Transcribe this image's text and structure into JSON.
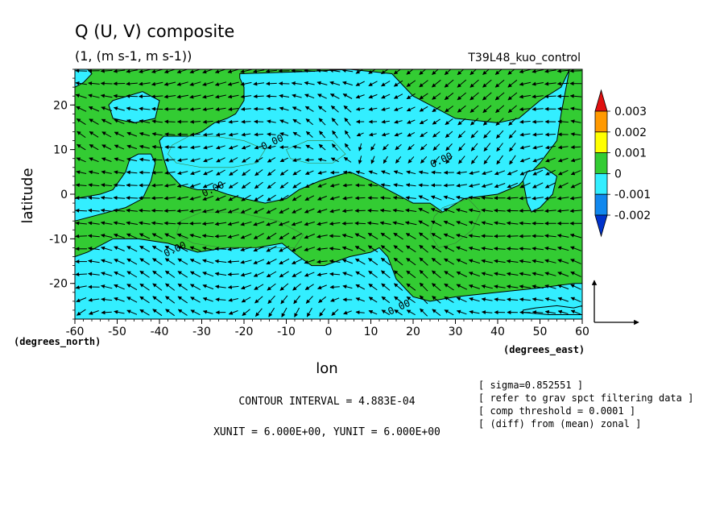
{
  "chart_data": {
    "type": "contour-vector",
    "title": "Q (U, V) composite",
    "subtitle": "(1, (m s-1, m s-1))",
    "run_label": "T39L48_kuo_control",
    "xlabel": "lon",
    "ylabel": "latitude",
    "x_unit_label": "(degrees_east)",
    "y_unit_label": "(degrees_north)",
    "xlim": [
      -60,
      60
    ],
    "ylim": [
      -28,
      28
    ],
    "x_ticks": [
      -60,
      -50,
      -40,
      -30,
      -20,
      -10,
      0,
      10,
      20,
      30,
      40,
      50,
      60
    ],
    "x_tick_labels": [
      "-60",
      "-50",
      "-40",
      "-30",
      "-20",
      "-10",
      "0",
      "10",
      "20",
      "30",
      "40",
      "50",
      "60"
    ],
    "y_ticks": [
      -20,
      -10,
      0,
      10,
      20
    ],
    "y_tick_labels": [
      "-20",
      "-10",
      "0",
      "10",
      "20"
    ],
    "colorbar": {
      "levels": [
        0.003,
        0.002,
        0.001,
        0,
        -0.001,
        -0.002
      ],
      "labels": [
        "0.003",
        "0.002",
        "0.001",
        "0",
        "-0.001",
        "-0.002"
      ],
      "colors": [
        "#e01010",
        "#ff9900",
        "#ffff00",
        "#33cc33",
        "#33eeff",
        "#1188ee",
        "#0033cc"
      ]
    },
    "fill_colors": {
      "positive": "#33cc33",
      "negative": "#33eeff"
    },
    "contour_labels": [
      {
        "text": "0.00",
        "lon": -13,
        "lat": 11
      },
      {
        "text": "0.00",
        "lon": -27,
        "lat": 0.5
      },
      {
        "text": "0.00",
        "lon": -36,
        "lat": -13
      },
      {
        "text": "0.00",
        "lon": 27,
        "lat": 7
      },
      {
        "text": "0.00",
        "lon": 17,
        "lat": -26
      }
    ],
    "negative_regions": [
      [
        [
          -51,
          21
        ],
        [
          -44,
          23
        ],
        [
          -40,
          21
        ],
        [
          -41,
          17
        ],
        [
          -46,
          16
        ],
        [
          -51,
          17
        ],
        [
          -52,
          20
        ]
      ],
      [
        [
          -21,
          27
        ],
        [
          -5,
          27.5
        ],
        [
          5,
          28
        ],
        [
          15,
          27
        ],
        [
          20,
          22
        ],
        [
          25,
          19.5
        ],
        [
          30,
          17
        ],
        [
          40,
          16
        ],
        [
          45,
          17
        ],
        [
          50,
          21
        ],
        [
          55,
          24
        ],
        [
          57,
          28
        ],
        [
          55,
          18
        ],
        [
          54,
          12
        ],
        [
          50,
          7
        ],
        [
          45,
          2
        ],
        [
          40,
          0
        ],
        [
          32,
          -1
        ],
        [
          27,
          -4
        ],
        [
          24,
          -2
        ],
        [
          20,
          -2
        ],
        [
          14,
          1
        ],
        [
          10,
          3
        ],
        [
          5,
          5
        ],
        [
          -2,
          3
        ],
        [
          -7,
          1
        ],
        [
          -10,
          -1
        ],
        [
          -15,
          -2
        ],
        [
          -20,
          -1
        ],
        [
          -24,
          0
        ],
        [
          -27,
          1
        ],
        [
          -31,
          1
        ],
        [
          -35,
          2
        ],
        [
          -38,
          5
        ],
        [
          -39,
          8
        ],
        [
          -40,
          12
        ],
        [
          -39,
          13
        ],
        [
          -36,
          13
        ],
        [
          -33,
          13
        ],
        [
          -30,
          14
        ],
        [
          -27,
          16
        ],
        [
          -24,
          17
        ],
        [
          -22,
          18
        ],
        [
          -20,
          21
        ],
        [
          -20,
          24
        ],
        [
          -21,
          26
        ]
      ],
      [
        [
          -60,
          -1
        ],
        [
          -54,
          0
        ],
        [
          -51,
          1
        ],
        [
          -48,
          5
        ],
        [
          -47,
          8
        ],
        [
          -45,
          9
        ],
        [
          -42,
          9
        ],
        [
          -41,
          7
        ],
        [
          -42,
          3
        ],
        [
          -44,
          -1
        ],
        [
          -48,
          -3
        ],
        [
          -52,
          -4
        ],
        [
          -56,
          -5
        ],
        [
          -60,
          -6
        ]
      ],
      [
        [
          -60,
          -14
        ],
        [
          -57,
          -13
        ],
        [
          -51,
          -10
        ],
        [
          -45,
          -10
        ],
        [
          -38,
          -11
        ],
        [
          -31,
          -13
        ],
        [
          -24,
          -12
        ],
        [
          -17,
          -12
        ],
        [
          -11,
          -11
        ],
        [
          -7,
          -14
        ],
        [
          -4,
          -16
        ],
        [
          -1,
          -16
        ],
        [
          5,
          -14
        ],
        [
          10,
          -13
        ],
        [
          12,
          -12
        ],
        [
          14,
          -14
        ],
        [
          16,
          -19
        ],
        [
          18,
          -21
        ],
        [
          20,
          -23
        ],
        [
          24,
          -24
        ],
        [
          30,
          -23
        ],
        [
          40,
          -22
        ],
        [
          50,
          -21
        ],
        [
          58,
          -20
        ],
        [
          60,
          -20
        ],
        [
          60,
          -28
        ],
        [
          -60,
          -28
        ]
      ],
      [
        [
          46,
          3
        ],
        [
          47,
          -2
        ],
        [
          48,
          -4
        ],
        [
          50,
          -3
        ],
        [
          53,
          0
        ],
        [
          54,
          4
        ],
        [
          51,
          6
        ],
        [
          47,
          5
        ]
      ],
      [
        [
          46,
          -26
        ],
        [
          49,
          -25.5
        ],
        [
          54,
          -25
        ],
        [
          58,
          -25.5
        ],
        [
          60,
          -25
        ],
        [
          60,
          -27
        ],
        [
          52,
          -27
        ],
        [
          46,
          -26.5
        ]
      ],
      [
        [
          -60,
          28
        ],
        [
          -57,
          28
        ],
        [
          -56,
          27
        ],
        [
          -58,
          25
        ],
        [
          -60,
          24
        ]
      ]
    ],
    "inner_contours": [
      [
        [
          -37,
          11
        ],
        [
          -33,
          13
        ],
        [
          -27,
          13
        ],
        [
          -20,
          12
        ],
        [
          -15,
          10
        ],
        [
          -17,
          7
        ],
        [
          -23,
          6
        ],
        [
          -30,
          6
        ],
        [
          -36,
          7
        ],
        [
          -38,
          9
        ]
      ],
      [
        [
          -35,
          -6
        ],
        [
          -30,
          -4
        ],
        [
          -22,
          -4
        ],
        [
          -12,
          -6
        ],
        [
          -6,
          -9
        ],
        [
          -8,
          -12
        ],
        [
          -16,
          -12
        ],
        [
          -25,
          -12
        ],
        [
          -32,
          -11
        ],
        [
          -36,
          -9
        ]
      ],
      [
        [
          27,
          -3
        ],
        [
          33,
          -1
        ],
        [
          36,
          -4
        ],
        [
          34,
          -8
        ],
        [
          30,
          -11
        ],
        [
          26,
          -12
        ],
        [
          24,
          -9
        ],
        [
          25,
          -5
        ]
      ],
      [
        [
          -10,
          10
        ],
        [
          -5,
          12
        ],
        [
          1,
          12
        ],
        [
          4,
          9
        ],
        [
          1,
          7
        ],
        [
          -5,
          7
        ],
        [
          -9,
          8
        ]
      ]
    ],
    "vector_field": {
      "grid_spacing_deg": 6,
      "reference_label": "XUNIT = 6.000E+00, YUNIT = 6.000E+00"
    },
    "contour_interval": "CONTOUR INTERVAL = 4.883E-04",
    "notes": [
      "[ sigma=0.852551 ]",
      "[ refer to grav spct filtering data ]",
      "[ comp threshold = 0.0001 ]",
      "[ (diff) from (mean) zonal ]"
    ]
  }
}
